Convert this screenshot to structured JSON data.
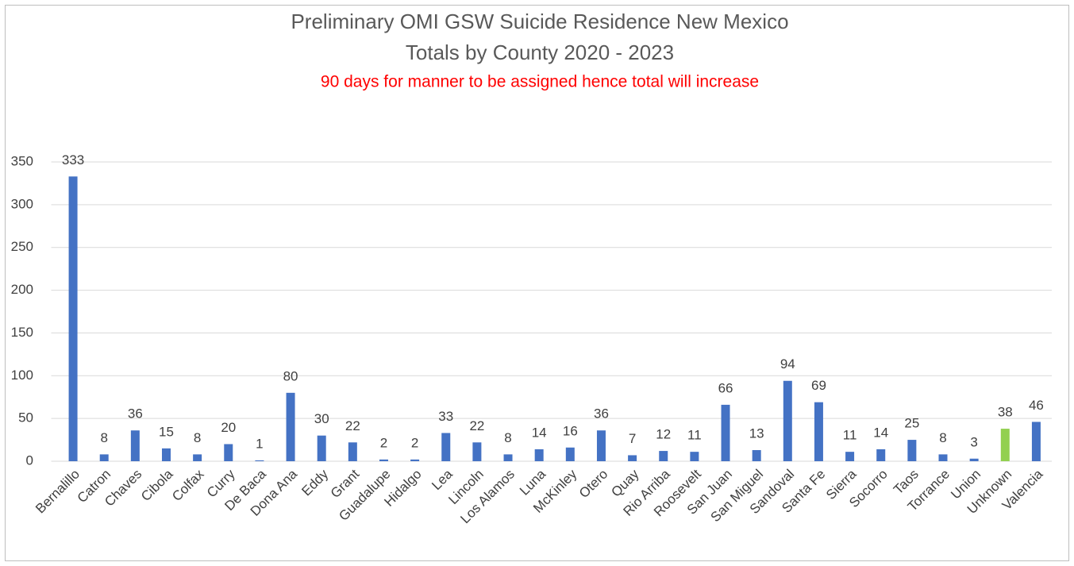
{
  "chart_data": {
    "type": "bar",
    "title": [
      "Preliminary OMI GSW Suicide Residence New Mexico",
      "Totals by County 2020 - 2023"
    ],
    "subtitle": "90 days for manner to be assigned hence total will increase",
    "categories": [
      "Bernalillo",
      "Catron",
      "Chaves",
      "Cibola",
      "Colfax",
      "Curry",
      "De Baca",
      "Dona Ana",
      "Eddy",
      "Grant",
      "Guadalupe",
      "Hidalgo",
      "Lea",
      "Lincoln",
      "Los Alamos",
      "Luna",
      "McKinley",
      "Otero",
      "Quay",
      "Rio Arriba",
      "Roosevelt",
      "San Juan",
      "San Miguel",
      "Sandoval",
      "Santa Fe",
      "Sierra",
      "Socorro",
      "Taos",
      "Torrance",
      "Union",
      "Unknown",
      "Valencia"
    ],
    "values": [
      333,
      8,
      36,
      15,
      8,
      20,
      1,
      80,
      30,
      22,
      2,
      2,
      33,
      22,
      8,
      14,
      16,
      36,
      7,
      12,
      11,
      66,
      13,
      94,
      69,
      11,
      14,
      25,
      8,
      3,
      38,
      46
    ],
    "colors": [
      "#4472c4",
      "#4472c4",
      "#4472c4",
      "#4472c4",
      "#4472c4",
      "#4472c4",
      "#4472c4",
      "#4472c4",
      "#4472c4",
      "#4472c4",
      "#4472c4",
      "#4472c4",
      "#4472c4",
      "#4472c4",
      "#4472c4",
      "#4472c4",
      "#4472c4",
      "#4472c4",
      "#4472c4",
      "#4472c4",
      "#4472c4",
      "#4472c4",
      "#4472c4",
      "#4472c4",
      "#4472c4",
      "#4472c4",
      "#4472c4",
      "#4472c4",
      "#4472c4",
      "#4472c4",
      "#92d050",
      "#4472c4"
    ],
    "ylim": [
      0,
      350
    ],
    "yticks": [
      0,
      50,
      100,
      150,
      200,
      250,
      300,
      350
    ],
    "grid": true
  }
}
